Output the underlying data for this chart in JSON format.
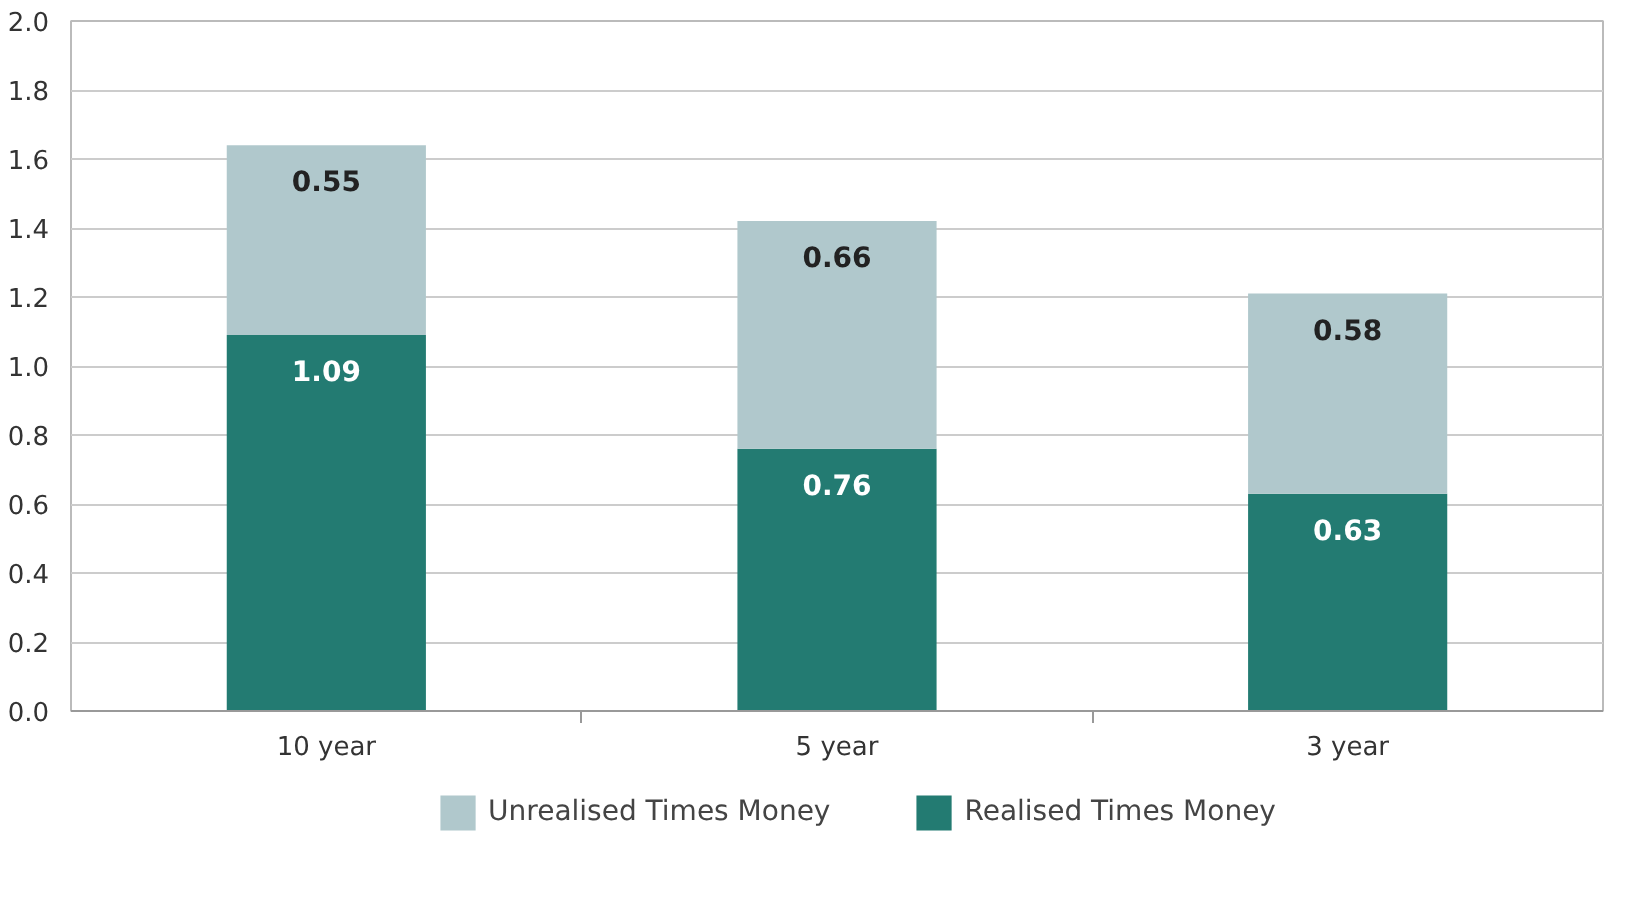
{
  "chart_data": {
    "type": "bar",
    "stacked": true,
    "categories": [
      "10 year",
      "5 year",
      "3 year"
    ],
    "series": [
      {
        "name": "Realised Times Money",
        "color": "#237b72",
        "values": [
          1.09,
          0.76,
          0.63
        ]
      },
      {
        "name": "Unrealised Times Money",
        "color": "#b0c8cc",
        "values": [
          0.55,
          0.66,
          0.58
        ]
      }
    ],
    "ylim": [
      0,
      2.0
    ],
    "yticks": [
      {
        "value": 0,
        "label": "0.0"
      },
      {
        "value": 0.2,
        "label": "0.2"
      },
      {
        "value": 0.4,
        "label": "0.4"
      },
      {
        "value": 0.6,
        "label": "0.6"
      },
      {
        "value": 0.8,
        "label": "0.8"
      },
      {
        "value": 1.0,
        "label": "1.0"
      },
      {
        "value": 1.2,
        "label": "1.2"
      },
      {
        "value": 1.4,
        "label": "1.4"
      },
      {
        "value": 1.6,
        "label": "1.6"
      },
      {
        "value": 1.8,
        "label": "1.8"
      },
      {
        "value": 2.0,
        "label": "2.0"
      }
    ],
    "grid": "y",
    "legend": "bottom",
    "data_labels": true
  }
}
